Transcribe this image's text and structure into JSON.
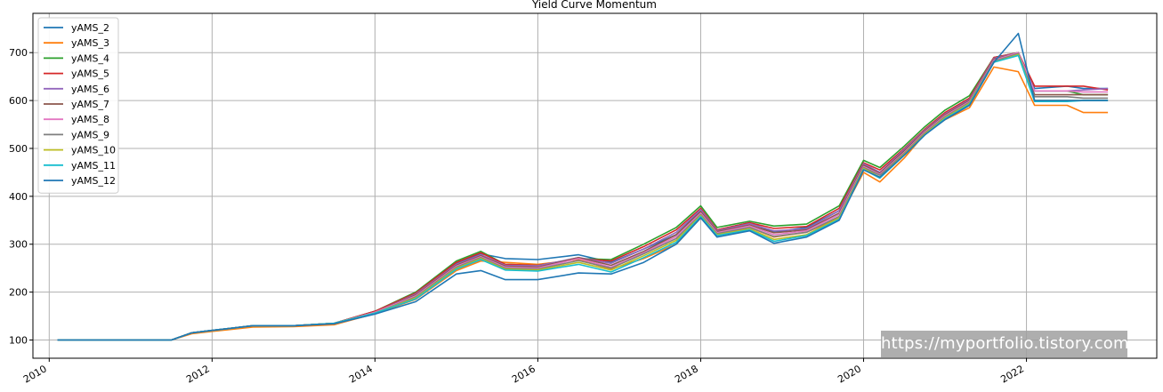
{
  "chart_data": {
    "type": "line",
    "title": "Yield Curve Momentum",
    "xlabel": "",
    "ylabel": "",
    "xlim": [
      2009.8,
      2023.6
    ],
    "ylim": [
      62,
      782
    ],
    "x_ticks": [
      2010,
      2012,
      2014,
      2016,
      2018,
      2020,
      2022
    ],
    "x_tick_labels": [
      "2010",
      "2012",
      "2014",
      "2016",
      "2018",
      "2020",
      "2022"
    ],
    "y_ticks": [
      100,
      200,
      300,
      400,
      500,
      600,
      700
    ],
    "y_tick_labels": [
      "100",
      "200",
      "300",
      "400",
      "500",
      "600",
      "700"
    ],
    "grid": true,
    "legend_position": "upper left",
    "x": [
      2010.1,
      2011.2,
      2011.5,
      2011.75,
      2012.0,
      2012.5,
      2013.0,
      2013.5,
      2014.0,
      2014.5,
      2015.0,
      2015.3,
      2015.6,
      2016.0,
      2016.5,
      2016.9,
      2017.3,
      2017.7,
      2018.0,
      2018.2,
      2018.6,
      2018.9,
      2019.3,
      2019.7,
      2020.0,
      2020.2,
      2020.5,
      2020.75,
      2021.0,
      2021.3,
      2021.6,
      2021.9,
      2022.1,
      2022.5,
      2022.7,
      2023.0
    ],
    "series": [
      {
        "name": "yAMS_2",
        "color": "#1f77b4",
        "values": [
          100,
          100,
          100,
          115,
          120,
          130,
          130,
          135,
          160,
          195,
          260,
          280,
          270,
          268,
          278,
          262,
          290,
          320,
          370,
          330,
          345,
          325,
          335,
          370,
          465,
          450,
          490,
          535,
          570,
          590,
          680,
          700,
          625,
          630,
          625,
          625
        ]
      },
      {
        "name": "yAMS_3",
        "color": "#ff7f0e",
        "values": [
          100,
          100,
          100,
          113,
          118,
          127,
          128,
          132,
          155,
          185,
          245,
          265,
          262,
          258,
          268,
          248,
          270,
          300,
          355,
          320,
          335,
          315,
          325,
          355,
          450,
          430,
          480,
          530,
          560,
          585,
          670,
          660,
          590,
          590,
          575,
          575
        ]
      },
      {
        "name": "yAMS_4",
        "color": "#2ca02c",
        "values": [
          100,
          100,
          100,
          115,
          120,
          130,
          130,
          135,
          160,
          200,
          265,
          285,
          258,
          256,
          270,
          268,
          300,
          335,
          380,
          335,
          348,
          338,
          342,
          380,
          475,
          460,
          505,
          545,
          580,
          610,
          690,
          700,
          620,
          620,
          612,
          612
        ]
      },
      {
        "name": "yAMS_5",
        "color": "#d62728",
        "values": [
          100,
          100,
          100,
          115,
          120,
          130,
          130,
          135,
          160,
          198,
          262,
          282,
          258,
          256,
          270,
          265,
          295,
          330,
          375,
          330,
          345,
          333,
          337,
          375,
          470,
          455,
          500,
          540,
          575,
          605,
          690,
          700,
          630,
          630,
          630,
          622
        ]
      },
      {
        "name": "yAMS_6",
        "color": "#9467bd",
        "values": [
          100,
          100,
          100,
          115,
          120,
          130,
          130,
          135,
          158,
          196,
          258,
          278,
          256,
          255,
          272,
          260,
          290,
          325,
          372,
          328,
          343,
          328,
          332,
          370,
          468,
          450,
          498,
          538,
          572,
          602,
          688,
          700,
          620,
          620,
          622,
          625
        ]
      },
      {
        "name": "yAMS_7",
        "color": "#8c564b",
        "values": [
          100,
          100,
          100,
          115,
          120,
          130,
          130,
          135,
          158,
          194,
          256,
          276,
          254,
          252,
          272,
          256,
          285,
          320,
          368,
          326,
          340,
          324,
          330,
          365,
          465,
          448,
          495,
          536,
          570,
          600,
          686,
          700,
          612,
          612,
          612,
          612
        ]
      },
      {
        "name": "yAMS_8",
        "color": "#e377c2",
        "values": [
          100,
          100,
          100,
          115,
          120,
          130,
          130,
          135,
          158,
          192,
          254,
          274,
          252,
          250,
          270,
          252,
          282,
          316,
          365,
          324,
          338,
          320,
          328,
          362,
          462,
          446,
          492,
          534,
          568,
          598,
          684,
          700,
          620,
          620,
          618,
          618
        ]
      },
      {
        "name": "yAMS_9",
        "color": "#7f7f7f",
        "values": [
          100,
          100,
          100,
          115,
          120,
          130,
          130,
          135,
          156,
          190,
          252,
          272,
          250,
          248,
          266,
          250,
          280,
          312,
          362,
          322,
          335,
          316,
          325,
          358,
          460,
          444,
          490,
          532,
          566,
          596,
          682,
          698,
          608,
          608,
          605,
          605
        ]
      },
      {
        "name": "yAMS_10",
        "color": "#bcbd22",
        "values": [
          100,
          100,
          100,
          115,
          120,
          130,
          130,
          135,
          156,
          188,
          250,
          270,
          248,
          246,
          262,
          246,
          276,
          308,
          360,
          320,
          332,
          310,
          320,
          355,
          458,
          440,
          488,
          530,
          564,
          594,
          680,
          696,
          600,
          600,
          600,
          600
        ]
      },
      {
        "name": "yAMS_11",
        "color": "#17becf",
        "values": [
          100,
          100,
          100,
          115,
          120,
          130,
          130,
          135,
          156,
          186,
          248,
          268,
          246,
          244,
          258,
          242,
          272,
          304,
          358,
          318,
          330,
          306,
          318,
          352,
          456,
          438,
          486,
          528,
          562,
          592,
          680,
          694,
          598,
          598,
          600,
          600
        ]
      },
      {
        "name": "yAMS_12",
        "color": "#1f77b4",
        "values": [
          100,
          100,
          100,
          115,
          120,
          130,
          130,
          134,
          154,
          180,
          238,
          245,
          226,
          226,
          240,
          238,
          262,
          300,
          355,
          315,
          328,
          302,
          315,
          350,
          455,
          440,
          486,
          528,
          560,
          590,
          680,
          740,
          600,
          600,
          600,
          600
        ]
      }
    ]
  },
  "watermark": {
    "text": "https://myportfolio.tistory.com"
  }
}
